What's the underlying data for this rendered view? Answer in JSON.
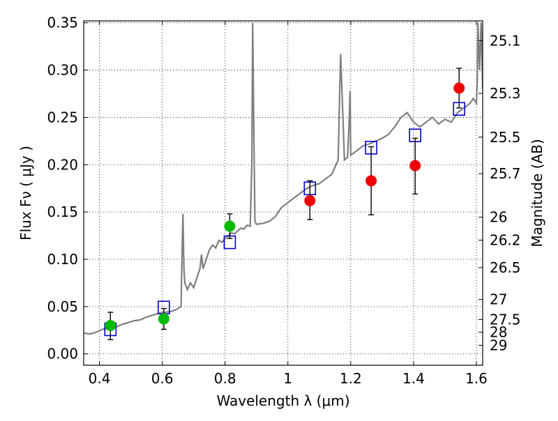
{
  "chart_data": {
    "type": "scatter",
    "xlabel": "Wavelength  λ (μm)",
    "ylabel": "Flux  Fν  ( μJy )",
    "ylabel_right": "Magnitude (AB)",
    "xlim": [
      0.35,
      1.62
    ],
    "ylim": [
      -0.012,
      0.352
    ],
    "grid": true,
    "x_ticks": [
      {
        "value": 0.4,
        "label": "0.4"
      },
      {
        "value": 0.6,
        "label": "0.6"
      },
      {
        "value": 0.8,
        "label": "0.8"
      },
      {
        "value": 1.0,
        "label": "1"
      },
      {
        "value": 1.2,
        "label": "1.2"
      },
      {
        "value": 1.4,
        "label": "1.4"
      },
      {
        "value": 1.6,
        "label": "1.6"
      }
    ],
    "y_ticks": [
      {
        "value": 0.0,
        "label": "0.00"
      },
      {
        "value": 0.05,
        "label": "0.05"
      },
      {
        "value": 0.1,
        "label": "0.10"
      },
      {
        "value": 0.15,
        "label": "0.15"
      },
      {
        "value": 0.2,
        "label": "0.20"
      },
      {
        "value": 0.25,
        "label": "0.25"
      },
      {
        "value": 0.3,
        "label": "0.30"
      },
      {
        "value": 0.35,
        "label": "0.35"
      }
    ],
    "right_ticks": [
      {
        "flux": 0.331,
        "label": "25.1"
      },
      {
        "flux": 0.2754,
        "label": "25.3"
      },
      {
        "flux": 0.2291,
        "label": "25.5"
      },
      {
        "flux": 0.1905,
        "label": "25.7"
      },
      {
        "flux": 0.1445,
        "label": "26"
      },
      {
        "flux": 0.1202,
        "label": "26.2"
      },
      {
        "flux": 0.0912,
        "label": "26.5"
      },
      {
        "flux": 0.0575,
        "label": "27"
      },
      {
        "flux": 0.0363,
        "label": "27.5"
      },
      {
        "flux": 0.0229,
        "label": "28"
      },
      {
        "flux": 0.0091,
        "label": "29"
      }
    ],
    "series": [
      {
        "kind": "line",
        "color": "#7f7f7f",
        "points": [
          [
            0.35,
            0.022
          ],
          [
            0.37,
            0.021
          ],
          [
            0.39,
            0.023
          ],
          [
            0.41,
            0.026
          ],
          [
            0.43,
            0.027
          ],
          [
            0.45,
            0.028
          ],
          [
            0.47,
            0.031
          ],
          [
            0.49,
            0.033
          ],
          [
            0.51,
            0.035
          ],
          [
            0.53,
            0.036
          ],
          [
            0.55,
            0.039
          ],
          [
            0.57,
            0.041
          ],
          [
            0.59,
            0.043
          ],
          [
            0.61,
            0.044
          ],
          [
            0.63,
            0.045
          ],
          [
            0.645,
            0.047
          ],
          [
            0.655,
            0.049
          ],
          [
            0.66,
            0.05
          ],
          [
            0.663,
            0.105
          ],
          [
            0.666,
            0.148
          ],
          [
            0.669,
            0.09
          ],
          [
            0.672,
            0.075
          ],
          [
            0.68,
            0.068
          ],
          [
            0.69,
            0.075
          ],
          [
            0.7,
            0.07
          ],
          [
            0.71,
            0.08
          ],
          [
            0.72,
            0.09
          ],
          [
            0.725,
            0.105
          ],
          [
            0.73,
            0.09
          ],
          [
            0.74,
            0.1
          ],
          [
            0.75,
            0.11
          ],
          [
            0.76,
            0.115
          ],
          [
            0.77,
            0.112
          ],
          [
            0.78,
            0.12
          ],
          [
            0.79,
            0.118
          ],
          [
            0.8,
            0.122
          ],
          [
            0.81,
            0.125
          ],
          [
            0.82,
            0.128
          ],
          [
            0.83,
            0.127
          ],
          [
            0.84,
            0.13
          ],
          [
            0.85,
            0.133
          ],
          [
            0.86,
            0.132
          ],
          [
            0.87,
            0.136
          ],
          [
            0.88,
            0.135
          ],
          [
            0.885,
            0.2
          ],
          [
            0.888,
            0.35
          ],
          [
            0.891,
            0.25
          ],
          [
            0.895,
            0.14
          ],
          [
            0.9,
            0.137
          ],
          [
            0.92,
            0.138
          ],
          [
            0.94,
            0.14
          ],
          [
            0.96,
            0.145
          ],
          [
            0.98,
            0.155
          ],
          [
            1.0,
            0.16
          ],
          [
            1.02,
            0.165
          ],
          [
            1.04,
            0.17
          ],
          [
            1.06,
            0.175
          ],
          [
            1.08,
            0.178
          ],
          [
            1.1,
            0.18
          ],
          [
            1.12,
            0.185
          ],
          [
            1.14,
            0.19
          ],
          [
            1.16,
            0.205
          ],
          [
            1.165,
            0.28
          ],
          [
            1.168,
            0.317
          ],
          [
            1.172,
            0.28
          ],
          [
            1.18,
            0.205
          ],
          [
            1.19,
            0.208
          ],
          [
            1.195,
            0.245
          ],
          [
            1.198,
            0.278
          ],
          [
            1.2,
            0.21
          ],
          [
            1.22,
            0.215
          ],
          [
            1.24,
            0.22
          ],
          [
            1.26,
            0.222
          ],
          [
            1.28,
            0.225
          ],
          [
            1.3,
            0.228
          ],
          [
            1.32,
            0.232
          ],
          [
            1.34,
            0.24
          ],
          [
            1.36,
            0.25
          ],
          [
            1.38,
            0.255
          ],
          [
            1.4,
            0.245
          ],
          [
            1.42,
            0.24
          ],
          [
            1.44,
            0.245
          ],
          [
            1.46,
            0.25
          ],
          [
            1.48,
            0.243
          ],
          [
            1.5,
            0.248
          ],
          [
            1.52,
            0.245
          ],
          [
            1.54,
            0.255
          ],
          [
            1.56,
            0.26
          ],
          [
            1.58,
            0.265
          ],
          [
            1.59,
            0.27
          ],
          [
            1.6,
            0.265
          ],
          [
            1.603,
            0.29
          ],
          [
            1.605,
            0.35
          ],
          [
            1.61,
            0.3
          ],
          [
            1.615,
            0.35
          ],
          [
            1.62,
            0.28
          ]
        ]
      },
      {
        "kind": "squares",
        "color": "#0000cc",
        "points": [
          [
            0.435,
            0.026
          ],
          [
            0.605,
            0.049
          ],
          [
            0.815,
            0.118
          ],
          [
            1.07,
            0.175
          ],
          [
            1.265,
            0.218
          ],
          [
            1.405,
            0.231
          ],
          [
            1.545,
            0.259
          ]
        ]
      },
      {
        "kind": "circles",
        "color": "#00bb00",
        "points": [
          {
            "x": 0.435,
            "y": 0.03,
            "lo": 0.015,
            "hi": 0.044
          },
          {
            "x": 0.605,
            "y": 0.037,
            "lo": 0.026,
            "hi": 0.048
          },
          {
            "x": 0.815,
            "y": 0.135,
            "lo": 0.122,
            "hi": 0.148
          }
        ]
      },
      {
        "kind": "circles",
        "color": "#ee0000",
        "points": [
          {
            "x": 1.07,
            "y": 0.162,
            "lo": 0.142,
            "hi": 0.183
          },
          {
            "x": 1.265,
            "y": 0.183,
            "lo": 0.147,
            "hi": 0.219
          },
          {
            "x": 1.405,
            "y": 0.199,
            "lo": 0.169,
            "hi": 0.228
          },
          {
            "x": 1.545,
            "y": 0.281,
            "lo": 0.26,
            "hi": 0.302
          }
        ]
      }
    ]
  }
}
